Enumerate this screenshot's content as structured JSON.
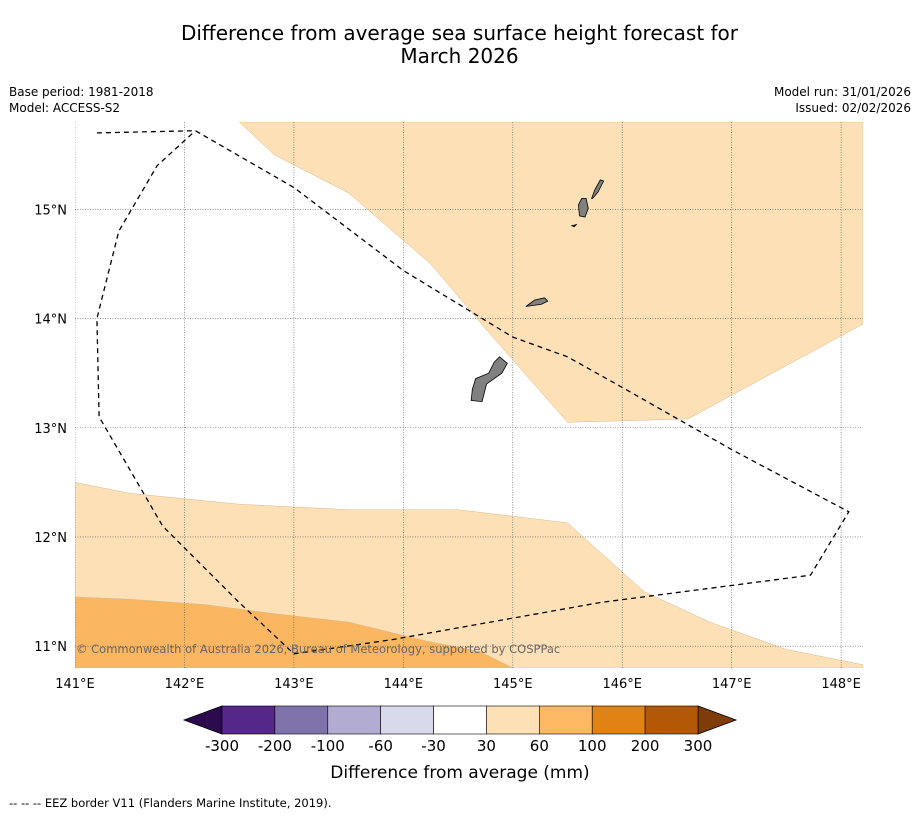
{
  "title": {
    "line1": "Difference from average sea surface height forecast for",
    "line2": "March 2026"
  },
  "meta": {
    "base_period": "Base period: 1981-2018",
    "model": "Model: ACCESS-S2",
    "model_run": "Model run: 31/01/2026",
    "issued": "Issued: 02/02/2026"
  },
  "copyright": "© Commonwealth of Australia 2026, Bureau of Meteorology, supported by COSPPac",
  "footnote": "--  --  -- EEZ border V11 (Flanders Marine Institute, 2019).",
  "chart_data": {
    "type": "heatmap",
    "title": "Difference from average sea surface height forecast for March 2026",
    "x_axis": {
      "range": [
        141.0,
        148.2
      ],
      "ticks": [
        141,
        142,
        143,
        144,
        145,
        146,
        147,
        148
      ],
      "tick_labels": [
        "141°E",
        "142°E",
        "143°E",
        "144°E",
        "145°E",
        "146°E",
        "147°E",
        "148°E"
      ]
    },
    "y_axis": {
      "range": [
        10.8,
        15.8
      ],
      "ticks": [
        11,
        12,
        13,
        14,
        15
      ],
      "tick_labels": [
        "11°N",
        "12°N",
        "13°N",
        "14°N",
        "15°N"
      ]
    },
    "grid": true,
    "colorbar": {
      "label": "Difference from average (mm)",
      "boundaries": [
        "-300",
        "-200",
        "-100",
        "-60",
        "-30",
        "30",
        "60",
        "100",
        "200",
        "300"
      ],
      "under_color": "#2d0a4e",
      "over_color": "#7f3b08",
      "colors": [
        "#542788",
        "#8073ac",
        "#b2abd2",
        "#d8daeb",
        "#ffffff",
        "#fee0b6",
        "#fdb863",
        "#e08214",
        "#b35806"
      ]
    },
    "regions": [
      {
        "name": "northeast 30-60 mm band",
        "category": "30 to 60",
        "color": "#fde0b6",
        "polygon": [
          [
            142.5,
            15.8
          ],
          [
            148.2,
            15.8
          ],
          [
            148.2,
            13.95
          ],
          [
            146.6,
            13.08
          ],
          [
            145.5,
            13.05
          ],
          [
            144.8,
            13.85
          ],
          [
            144.25,
            14.5
          ],
          [
            143.5,
            15.15
          ],
          [
            142.82,
            15.5
          ]
        ]
      },
      {
        "name": "southern 30-60 mm band",
        "category": "30 to 60",
        "color": "#fde0b6",
        "polygon": [
          [
            141.0,
            12.5
          ],
          [
            141.5,
            12.4
          ],
          [
            142.5,
            12.3
          ],
          [
            143.5,
            12.25
          ],
          [
            144.5,
            12.25
          ],
          [
            145.5,
            12.13
          ],
          [
            146.2,
            11.5
          ],
          [
            146.8,
            11.22
          ],
          [
            147.5,
            10.97
          ],
          [
            148.2,
            10.83
          ],
          [
            148.2,
            10.8
          ],
          [
            141.0,
            10.8
          ]
        ]
      },
      {
        "name": "southwest 60-100 mm band",
        "category": "60 to 100",
        "color": "#fbb661",
        "polygon": [
          [
            141.0,
            11.45
          ],
          [
            141.5,
            11.43
          ],
          [
            142.2,
            11.38
          ],
          [
            142.8,
            11.3
          ],
          [
            143.5,
            11.22
          ],
          [
            144.2,
            11.05
          ],
          [
            144.7,
            10.95
          ],
          [
            145.0,
            10.8
          ],
          [
            141.0,
            10.8
          ]
        ]
      }
    ],
    "islands": [
      {
        "name": "Guam",
        "polygon": [
          [
            144.62,
            13.25
          ],
          [
            144.72,
            13.24
          ],
          [
            144.76,
            13.4
          ],
          [
            144.9,
            13.5
          ],
          [
            144.95,
            13.59
          ],
          [
            144.88,
            13.65
          ],
          [
            144.83,
            13.6
          ],
          [
            144.78,
            13.5
          ],
          [
            144.66,
            13.45
          ],
          [
            144.63,
            13.35
          ]
        ]
      },
      {
        "name": "Rota",
        "polygon": [
          [
            145.12,
            14.11
          ],
          [
            145.2,
            14.17
          ],
          [
            145.29,
            14.19
          ],
          [
            145.32,
            14.16
          ],
          [
            145.26,
            14.13
          ],
          [
            145.18,
            14.12
          ]
        ]
      },
      {
        "name": "Tinian-Saipan",
        "polygon": [
          [
            145.6,
            15.04
          ],
          [
            145.61,
            14.94
          ],
          [
            145.66,
            14.93
          ],
          [
            145.69,
            15.01
          ],
          [
            145.67,
            15.1
          ],
          [
            145.63,
            15.1
          ]
        ]
      },
      {
        "name": "Saipan north",
        "polygon": [
          [
            145.72,
            15.1
          ],
          [
            145.75,
            15.18
          ],
          [
            145.8,
            15.27
          ],
          [
            145.83,
            15.26
          ],
          [
            145.78,
            15.16
          ],
          [
            145.73,
            15.1
          ]
        ]
      },
      {
        "name": "Aguijan",
        "polygon": [
          [
            145.54,
            14.85
          ],
          [
            145.58,
            14.86
          ],
          [
            145.56,
            14.84
          ]
        ]
      }
    ],
    "eez_border": [
      [
        141.2,
        15.7
      ],
      [
        142.1,
        15.72
      ],
      [
        143.0,
        15.2
      ],
      [
        144.0,
        14.44
      ],
      [
        145.0,
        13.83
      ],
      [
        145.5,
        13.65
      ],
      [
        146.0,
        13.37
      ],
      [
        147.0,
        12.8
      ],
      [
        148.07,
        12.23
      ],
      [
        147.72,
        11.65
      ],
      [
        145.8,
        11.4
      ],
      [
        143.9,
        11.06
      ],
      [
        143.0,
        10.93
      ],
      [
        142.5,
        11.4
      ],
      [
        141.8,
        12.1
      ],
      [
        141.22,
        13.1
      ],
      [
        141.2,
        14.0
      ],
      [
        141.4,
        14.8
      ],
      [
        141.75,
        15.4
      ],
      [
        142.1,
        15.72
      ]
    ],
    "annotations": [
      "© Commonwealth of Australia 2026, Bureau of Meteorology, supported by COSPPac"
    ]
  }
}
